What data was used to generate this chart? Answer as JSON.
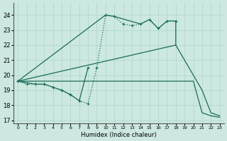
{
  "xlabel": "Humidex (Indice chaleur)",
  "xlim": [
    -0.5,
    23.5
  ],
  "ylim": [
    16.8,
    24.8
  ],
  "yticks": [
    17,
    18,
    19,
    20,
    21,
    22,
    23,
    24
  ],
  "xticks": [
    0,
    1,
    2,
    3,
    4,
    5,
    6,
    7,
    8,
    9,
    10,
    11,
    12,
    13,
    14,
    15,
    16,
    17,
    18,
    19,
    20,
    21,
    22,
    23
  ],
  "bg_color": "#cce8e0",
  "line_color": "#1a6b5a",
  "grid_color": "#aed4cc",
  "series": [
    {
      "x": [
        0,
        1,
        2,
        3,
        4,
        5,
        6,
        7,
        8,
        9,
        10,
        11,
        12,
        13,
        14,
        15,
        16,
        17,
        18
      ],
      "y": [
        19.6,
        19.4,
        19.4,
        19.4,
        19.2,
        19.0,
        18.7,
        18.3,
        18.1,
        20.5,
        24.0,
        23.9,
        23.4,
        23.3,
        23.4,
        23.7,
        23.1,
        23.6,
        23.6
      ],
      "linestyle": ":",
      "marker": "+",
      "lw": 0.9
    },
    {
      "x": [
        0,
        18,
        21,
        22,
        23
      ],
      "y": [
        19.6,
        22.0,
        19.0,
        17.5,
        17.3
      ],
      "linestyle": "-",
      "marker": null,
      "lw": 0.9
    },
    {
      "x": [
        0,
        20,
        21,
        22,
        23
      ],
      "y": [
        19.6,
        19.6,
        17.5,
        17.3,
        17.2
      ],
      "linestyle": "-",
      "marker": null,
      "lw": 0.9
    },
    {
      "x": [
        0,
        2,
        3,
        4,
        5,
        6,
        7,
        8
      ],
      "y": [
        19.6,
        19.4,
        19.4,
        19.2,
        19.0,
        18.7,
        18.3,
        20.5
      ],
      "linestyle": "-",
      "marker": "+",
      "lw": 0.9
    },
    {
      "x": [
        0,
        10,
        11,
        14,
        15,
        16,
        17,
        18,
        18
      ],
      "y": [
        19.6,
        24.0,
        23.9,
        23.4,
        23.7,
        23.1,
        23.6,
        23.6,
        22.0
      ],
      "linestyle": "-",
      "marker": null,
      "lw": 0.9
    }
  ]
}
